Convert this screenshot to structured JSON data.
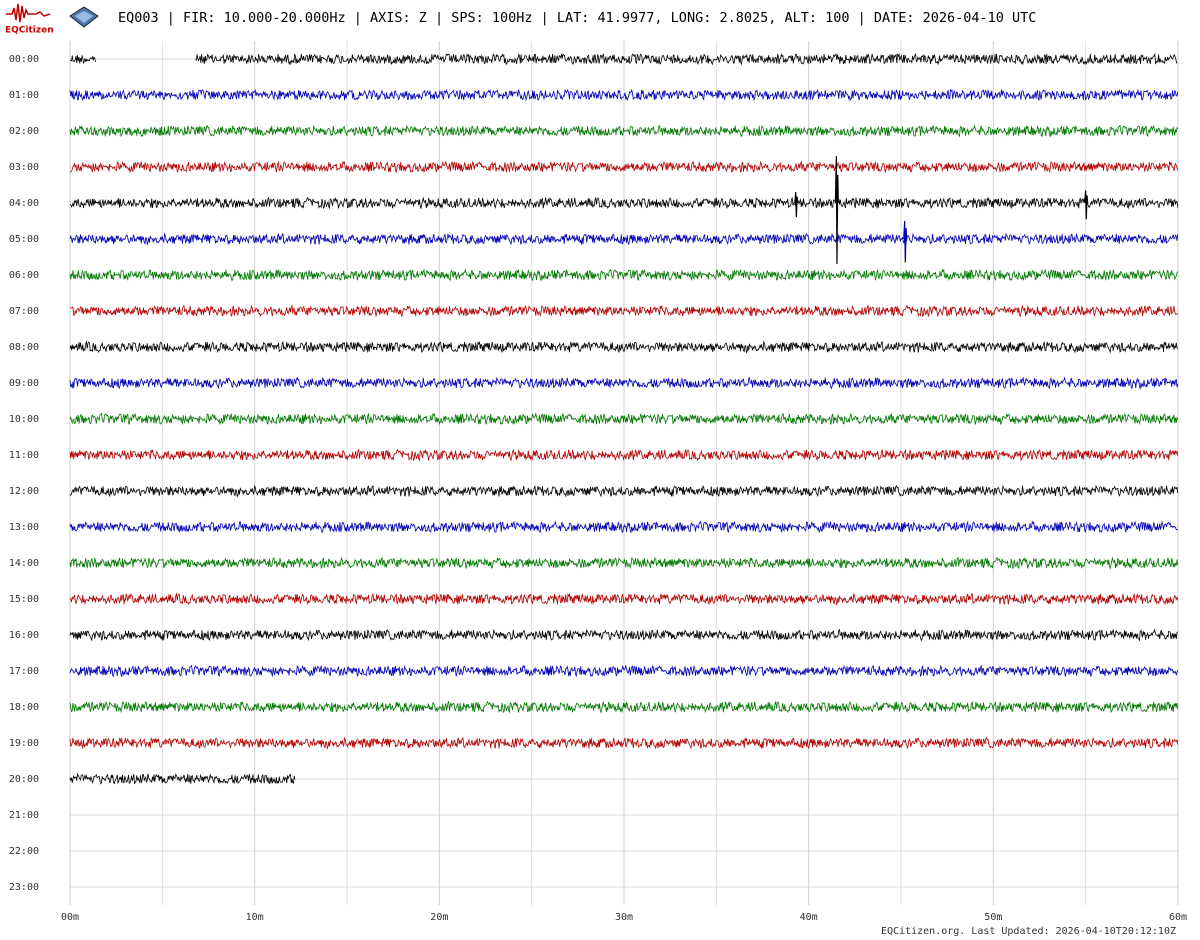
{
  "header": {
    "logo_text": "EQCitizen",
    "title": "EQ003 | FIR: 10.000-20.000Hz | AXIS: Z | SPS: 100Hz | LAT: 41.9977, LONG: 2.8025, ALT: 100 | DATE: 2026-04-10 UTC"
  },
  "footer": "EQCitizen.org. Last Updated: 2026-04-10T20:12:10Z",
  "chart_data": {
    "type": "helicorder",
    "rows": [
      "00:00",
      "01:00",
      "02:00",
      "03:00",
      "04:00",
      "05:00",
      "06:00",
      "07:00",
      "08:00",
      "09:00",
      "10:00",
      "11:00",
      "12:00",
      "13:00",
      "14:00",
      "15:00",
      "16:00",
      "17:00",
      "18:00",
      "19:00",
      "20:00",
      "21:00",
      "22:00",
      "23:00"
    ],
    "xlim": [
      0,
      60
    ],
    "xticks": [
      {
        "value": 0,
        "label": "00m"
      },
      {
        "value": 10,
        "label": "10m"
      },
      {
        "value": 20,
        "label": "20m"
      },
      {
        "value": 30,
        "label": "30m"
      },
      {
        "value": 40,
        "label": "40m"
      },
      {
        "value": 50,
        "label": "50m"
      },
      {
        "value": 60,
        "label": "60m"
      }
    ],
    "minor_xticks": [
      5,
      15,
      25,
      35,
      45,
      55
    ],
    "grid": true,
    "colors": [
      "#000000",
      "#0000b4",
      "#007800",
      "#b40000"
    ],
    "traces": [
      [
        [
          0,
          1.4
        ],
        [
          6.8,
          60
        ]
      ],
      [
        [
          0,
          60
        ]
      ],
      [
        [
          0,
          60
        ]
      ],
      [
        [
          0,
          60
        ]
      ],
      [
        [
          0,
          60
        ]
      ],
      [
        [
          0,
          60
        ]
      ],
      [
        [
          0,
          60
        ]
      ],
      [
        [
          0,
          60
        ]
      ],
      [
        [
          0,
          60
        ]
      ],
      [
        [
          0,
          60
        ]
      ],
      [
        [
          0,
          60
        ]
      ],
      [
        [
          0,
          60
        ]
      ],
      [
        [
          0,
          60
        ]
      ],
      [
        [
          0,
          60
        ]
      ],
      [
        [
          0,
          60
        ]
      ],
      [
        [
          0,
          60
        ]
      ],
      [
        [
          0,
          60
        ]
      ],
      [
        [
          0,
          60
        ]
      ],
      [
        [
          0,
          60
        ]
      ],
      [
        [
          0,
          60
        ]
      ],
      [
        [
          0,
          12.2
        ]
      ]
    ],
    "events": [
      {
        "row": 4,
        "x": 41.5,
        "amplitude": 1.3
      },
      {
        "row": 5,
        "x": 45.2,
        "amplitude": 0.5
      },
      {
        "row": 4,
        "x": 55,
        "amplitude": 0.35
      },
      {
        "row": 4,
        "x": 39.3,
        "amplitude": 0.3
      }
    ]
  }
}
